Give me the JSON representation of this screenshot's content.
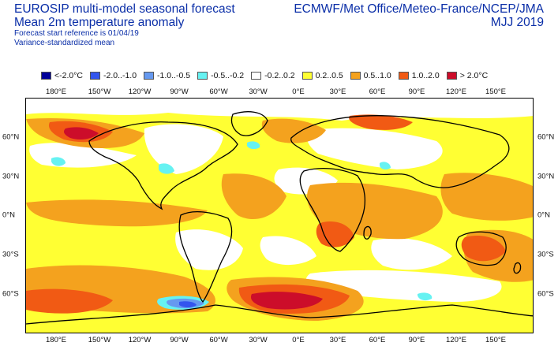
{
  "header": {
    "title_lines": [
      "EUROSIP multi-model seasonal forecast",
      "Mean 2m temperature anomaly"
    ],
    "subtitle_lines": [
      "Forecast start reference is 01/04/19",
      "Variance-standardized mean"
    ],
    "org": "ECMWF/Met Office/Meteo-France/NCEP/JMA",
    "season": "MJJ 2019"
  },
  "legend": {
    "items": [
      {
        "label": "<-2.0°C",
        "color": "#000099"
      },
      {
        "label": "-2.0..-1.0",
        "color": "#3355ee"
      },
      {
        "label": "-1.0..-0.5",
        "color": "#6699f0"
      },
      {
        "label": "-0.5..-0.2",
        "color": "#66f2f2"
      },
      {
        "label": "-0.2..0.2",
        "color": "#ffffff"
      },
      {
        "label": "0.2..0.5",
        "color": "#ffff33"
      },
      {
        "label": "0.5..1.0",
        "color": "#f4a21e"
      },
      {
        "label": "1.0..2.0",
        "color": "#f15a14"
      },
      {
        "label": "> 2.0°C",
        "color": "#cc0d2a"
      }
    ]
  },
  "axes": {
    "lon_labels": [
      "180°E",
      "150°W",
      "120°W",
      "90°W",
      "60°W",
      "30°W",
      "0°E",
      "30°E",
      "60°E",
      "90°E",
      "120°E",
      "150°E"
    ],
    "lat_labels_left": [
      "60°N",
      "30°N",
      "0°N",
      "30°S",
      "60°S"
    ],
    "lat_labels_right": [
      "60°N",
      "30°N",
      "0°N",
      "30°S",
      "60°S"
    ]
  },
  "map": {
    "colors": {
      "white": "#ffffff",
      "yellow": "#ffff33",
      "orange": "#f4a21e",
      "red_orange": "#f15a14",
      "red": "#cc0d2a",
      "cyan": "#66f2f2",
      "light_blue": "#6699f0",
      "blue": "#3355ee",
      "coast": "#000000"
    }
  }
}
